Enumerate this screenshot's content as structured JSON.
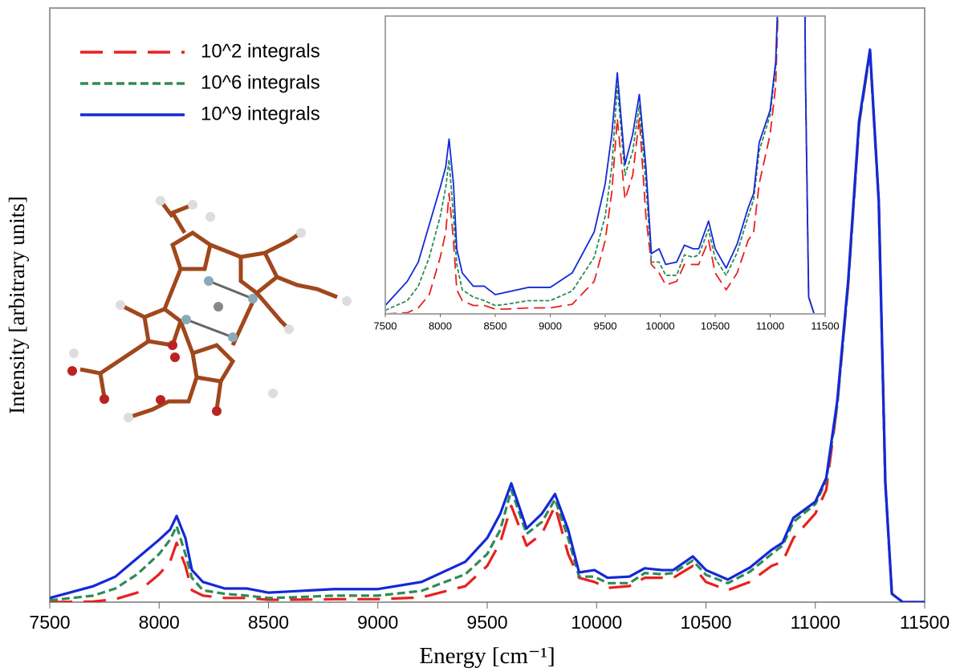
{
  "chart_data": [
    {
      "type": "line",
      "x_label": "Energy [cm⁻¹]",
      "y_label": "Intensity [arbitrary units]",
      "x": [
        7500,
        7700,
        7800,
        7900,
        8000,
        8050,
        8080,
        8120,
        8150,
        8200,
        8300,
        8400,
        8500,
        8600,
        8800,
        9000,
        9200,
        9400,
        9500,
        9560,
        9610,
        9680,
        9750,
        9810,
        9870,
        9920,
        9990,
        10050,
        10150,
        10220,
        10300,
        10350,
        10440,
        10500,
        10600,
        10700,
        10800,
        10850,
        10900,
        11000,
        11050,
        11100,
        11150,
        11200,
        11250,
        11290,
        11320,
        11350,
        11400,
        11500
      ],
      "series": [
        {
          "name": "10^2 integrals",
          "color": "#e8201e",
          "values": [
            0,
            0.1,
            0.5,
            1.6,
            4.7,
            6.8,
            10,
            6.1,
            2,
            1.1,
            0.7,
            0.7,
            0.4,
            0.4,
            0.5,
            0.5,
            0.8,
            2.7,
            6.1,
            10.1,
            16.2,
            9.5,
            11.5,
            16.2,
            8.1,
            4.1,
            3.4,
            2.4,
            2.7,
            4.1,
            4.1,
            4.1,
            6.1,
            3.4,
            2,
            3.4,
            6.1,
            6.8,
            10.8,
            14.9,
            18.9,
            33.1,
            53.4,
            80.4,
            92.7,
            67.3,
            20,
            1.4,
            0,
            0
          ]
        },
        {
          "name": "10^6 integrals",
          "color": "#2e8b57",
          "values": [
            0.3,
            1.1,
            2.3,
            4.7,
            8.1,
            10.5,
            12.8,
            8.1,
            4.1,
            2,
            1.4,
            1.1,
            0.7,
            0.8,
            1.1,
            1.1,
            1.9,
            4.7,
            8.1,
            12.2,
            18.9,
            11.5,
            13.5,
            17.3,
            10.8,
            4.3,
            4.3,
            3.2,
            3.2,
            4.9,
            4.7,
            4.9,
            7,
            4.6,
            3.2,
            5.1,
            8.1,
            9.5,
            13.5,
            16.5,
            20.5,
            33.1,
            53.4,
            80.4,
            92.7,
            67.3,
            20,
            1.4,
            0,
            0
          ]
        },
        {
          "name": "10^9 integrals",
          "color": "#1428d8",
          "values": [
            0.7,
            2.7,
            4.3,
            7.4,
            10.5,
            12.2,
            14.5,
            10.8,
            5.4,
            3.4,
            2.3,
            2.3,
            1.6,
            1.8,
            2.2,
            2.2,
            3.4,
            6.8,
            10.8,
            14.9,
            20,
            12.4,
            14.9,
            18.2,
            12.2,
            5,
            5.4,
            4.1,
            4.3,
            5.7,
            5.4,
            5.4,
            7.7,
            5.4,
            3.8,
            5.8,
            8.8,
            10,
            14.2,
            16.9,
            20.9,
            33.8,
            54,
            81,
            93,
            67.6,
            20.3,
            1.4,
            0,
            0
          ]
        }
      ],
      "xlim": [
        7500,
        11500
      ],
      "ylim": [
        0,
        100
      ],
      "xticks": [
        7500,
        8000,
        8500,
        9000,
        9500,
        10000,
        10500,
        11000,
        11500
      ],
      "legend": "top-left"
    },
    {
      "type": "line",
      "inset": true,
      "xlim": [
        7500,
        11500
      ],
      "ylim": [
        0,
        24.7
      ],
      "xticks": [
        7500,
        8000,
        8500,
        9000,
        9500,
        10000,
        10500,
        11000,
        11500
      ]
    }
  ]
}
